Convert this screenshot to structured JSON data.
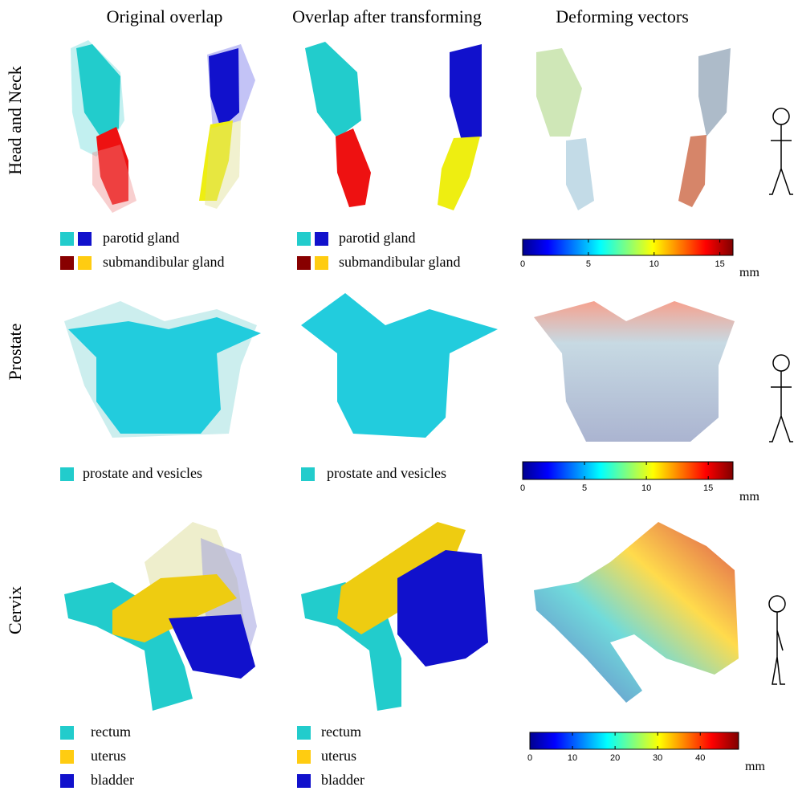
{
  "headers": [
    "Original overlap",
    "Overlap after transforming",
    "Deforming vectors"
  ],
  "rows": [
    {
      "label": "Head and Neck",
      "legends": [
        [
          "parotid gland",
          "submandibular gland"
        ],
        [
          "parotid gland",
          "submandibular gland"
        ]
      ],
      "colorbar": {
        "range": [
          0,
          16
        ],
        "ticks": [
          0,
          5,
          10,
          15
        ],
        "unit": "mm"
      }
    },
    {
      "label": "Prostate",
      "legends": [
        [
          "prostate and vesicles"
        ],
        [
          "prostate and vesicles"
        ]
      ],
      "colorbar": {
        "range": [
          0,
          17
        ],
        "ticks": [
          0,
          5,
          10,
          15
        ],
        "unit": "mm"
      }
    },
    {
      "label": "Cervix",
      "legends": [
        [
          "rectum",
          "uterus",
          "bladder"
        ],
        [
          "rectum",
          "uterus",
          "bladder"
        ]
      ],
      "colorbar": {
        "range": [
          0,
          49
        ],
        "ticks": [
          0,
          10,
          20,
          30,
          40
        ],
        "unit": "mm"
      }
    }
  ]
}
